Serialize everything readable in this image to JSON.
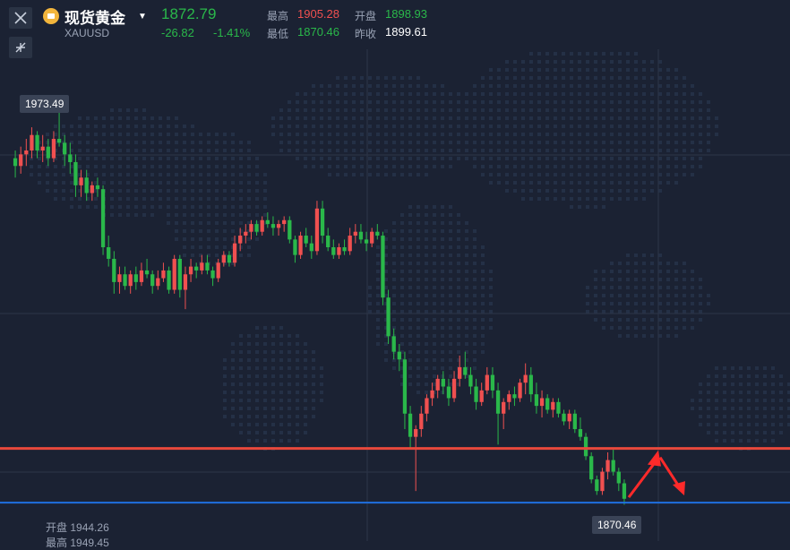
{
  "instrument": {
    "name": "现货黄金",
    "symbol": "XAUUSD",
    "dropdown_icon": "caret-down-icon",
    "coin_icon": "gold-coin-icon"
  },
  "quote": {
    "price": "1872.79",
    "change": "-26.82",
    "change_pct": "-1.41%"
  },
  "stats": {
    "high_label": "最高",
    "high": "1905.28",
    "open_label": "开盘",
    "open": "1898.93",
    "low_label": "最低",
    "low": "1870.46",
    "prev_close_label": "昨收",
    "prev_close": "1899.61"
  },
  "toolbar": {
    "close_icon": "close-icon",
    "collapse_icon": "collapse-icon"
  },
  "chart_callouts": {
    "high_marker": "1973.49",
    "low_marker": "1870.46"
  },
  "bottom_info": {
    "open_label": "开盘",
    "open_value": "1944.26",
    "high_label": "最高",
    "high_value": "1949.45"
  },
  "colors": {
    "background": "#1b2233",
    "up": "#f05050",
    "down": "#2ab84a",
    "resistance_line": "#e8483c",
    "support_line": "#1f6fe0"
  },
  "chart_data": {
    "type": "candlestick",
    "title": "",
    "xlabel": "",
    "ylabel": "",
    "ylim": [
      1862,
      1987
    ],
    "horizontal_lines": [
      {
        "name": "",
        "value": 1885,
        "color": "#e8483c"
      },
      {
        "name": "",
        "value": 1871,
        "color": "#1f6fe0"
      }
    ],
    "annotations": [
      "arrow up then down toward support"
    ],
    "candles": [
      [
        1960,
        1962,
        1955,
        1958
      ],
      [
        1958,
        1963,
        1956,
        1961
      ],
      [
        1961,
        1965,
        1958,
        1962
      ],
      [
        1962,
        1968,
        1960,
        1966
      ],
      [
        1966,
        1967,
        1960,
        1962
      ],
      [
        1962,
        1966,
        1959,
        1963
      ],
      [
        1963,
        1965,
        1958,
        1960
      ],
      [
        1960,
        1967,
        1959,
        1965
      ],
      [
        1965,
        1973,
        1963,
        1964
      ],
      [
        1964,
        1966,
        1958,
        1961
      ],
      [
        1961,
        1964,
        1956,
        1959
      ],
      [
        1959,
        1961,
        1950,
        1953
      ],
      [
        1953,
        1957,
        1950,
        1955
      ],
      [
        1955,
        1957,
        1949,
        1951
      ],
      [
        1951,
        1954,
        1949,
        1953
      ],
      [
        1953,
        1955,
        1950,
        1952
      ],
      [
        1952,
        1953,
        1935,
        1937
      ],
      [
        1937,
        1940,
        1932,
        1934
      ],
      [
        1934,
        1936,
        1925,
        1928
      ],
      [
        1928,
        1932,
        1925,
        1930
      ],
      [
        1930,
        1932,
        1926,
        1927
      ],
      [
        1927,
        1931,
        1925,
        1930
      ],
      [
        1930,
        1932,
        1926,
        1928
      ],
      [
        1928,
        1933,
        1927,
        1931
      ],
      [
        1931,
        1934,
        1929,
        1930
      ],
      [
        1930,
        1931,
        1925,
        1927
      ],
      [
        1927,
        1931,
        1926,
        1929
      ],
      [
        1929,
        1933,
        1928,
        1931
      ],
      [
        1931,
        1932,
        1925,
        1926
      ],
      [
        1926,
        1935,
        1925,
        1934
      ],
      [
        1934,
        1935,
        1924,
        1926
      ],
      [
        1926,
        1932,
        1921,
        1930
      ],
      [
        1930,
        1934,
        1928,
        1932
      ],
      [
        1932,
        1933,
        1929,
        1931
      ],
      [
        1931,
        1935,
        1930,
        1933
      ],
      [
        1933,
        1935,
        1930,
        1931
      ],
      [
        1931,
        1932,
        1927,
        1929
      ],
      [
        1929,
        1934,
        1928,
        1933
      ],
      [
        1933,
        1936,
        1932,
        1935
      ],
      [
        1935,
        1936,
        1932,
        1933
      ],
      [
        1933,
        1940,
        1932,
        1938
      ],
      [
        1938,
        1942,
        1936,
        1940
      ],
      [
        1940,
        1943,
        1938,
        1941
      ],
      [
        1941,
        1944,
        1939,
        1943
      ],
      [
        1943,
        1944,
        1940,
        1941
      ],
      [
        1941,
        1945,
        1940,
        1944
      ],
      [
        1944,
        1946,
        1942,
        1943
      ],
      [
        1943,
        1945,
        1940,
        1942
      ],
      [
        1942,
        1944,
        1940,
        1943
      ],
      [
        1943,
        1945,
        1941,
        1944
      ],
      [
        1944,
        1945,
        1938,
        1939
      ],
      [
        1939,
        1940,
        1933,
        1935
      ],
      [
        1935,
        1941,
        1934,
        1940
      ],
      [
        1940,
        1942,
        1937,
        1938
      ],
      [
        1938,
        1940,
        1934,
        1936
      ],
      [
        1936,
        1949,
        1935,
        1947
      ],
      [
        1947,
        1949,
        1938,
        1940
      ],
      [
        1940,
        1942,
        1936,
        1937
      ],
      [
        1937,
        1939,
        1934,
        1935
      ],
      [
        1935,
        1938,
        1934,
        1937
      ],
      [
        1937,
        1939,
        1935,
        1936
      ],
      [
        1936,
        1942,
        1935,
        1940
      ],
      [
        1940,
        1943,
        1938,
        1941
      ],
      [
        1941,
        1943,
        1938,
        1939
      ],
      [
        1939,
        1941,
        1936,
        1938
      ],
      [
        1938,
        1942,
        1937,
        1941
      ],
      [
        1941,
        1943,
        1939,
        1940
      ],
      [
        1940,
        1941,
        1922,
        1924
      ],
      [
        1924,
        1926,
        1912,
        1914
      ],
      [
        1914,
        1916,
        1908,
        1910
      ],
      [
        1910,
        1912,
        1905,
        1908
      ],
      [
        1908,
        1910,
        1890,
        1894
      ],
      [
        1894,
        1896,
        1885,
        1888
      ],
      [
        1888,
        1891,
        1874,
        1890
      ],
      [
        1890,
        1896,
        1888,
        1894
      ],
      [
        1894,
        1899,
        1892,
        1898
      ],
      [
        1898,
        1902,
        1896,
        1900
      ],
      [
        1900,
        1904,
        1898,
        1903
      ],
      [
        1903,
        1905,
        1899,
        1901
      ],
      [
        1901,
        1903,
        1896,
        1898
      ],
      [
        1898,
        1905,
        1897,
        1903
      ],
      [
        1903,
        1909,
        1901,
        1906
      ],
      [
        1906,
        1910,
        1903,
        1904
      ],
      [
        1904,
        1906,
        1899,
        1901
      ],
      [
        1901,
        1903,
        1895,
        1897
      ],
      [
        1897,
        1902,
        1896,
        1900
      ],
      [
        1900,
        1906,
        1899,
        1904
      ],
      [
        1904,
        1906,
        1898,
        1900
      ],
      [
        1900,
        1902,
        1886,
        1894
      ],
      [
        1894,
        1898,
        1890,
        1897
      ],
      [
        1897,
        1900,
        1895,
        1899
      ],
      [
        1899,
        1901,
        1896,
        1898
      ],
      [
        1898,
        1903,
        1897,
        1902
      ],
      [
        1902,
        1907,
        1899,
        1904
      ],
      [
        1904,
        1906,
        1897,
        1899
      ],
      [
        1899,
        1902,
        1894,
        1896
      ],
      [
        1896,
        1900,
        1893,
        1898
      ],
      [
        1898,
        1899,
        1894,
        1895
      ],
      [
        1895,
        1898,
        1893,
        1897
      ],
      [
        1897,
        1898,
        1893,
        1894
      ],
      [
        1894,
        1895,
        1891,
        1892
      ],
      [
        1892,
        1895,
        1890,
        1894
      ],
      [
        1894,
        1895,
        1889,
        1890
      ],
      [
        1890,
        1893,
        1887,
        1888
      ],
      [
        1888,
        1889,
        1882,
        1883
      ],
      [
        1883,
        1884,
        1876,
        1877
      ],
      [
        1877,
        1878,
        1873,
        1874
      ],
      [
        1874,
        1880,
        1873,
        1879
      ],
      [
        1879,
        1884,
        1877,
        1882
      ],
      [
        1882,
        1885,
        1878,
        1879
      ],
      [
        1879,
        1880,
        1874,
        1876
      ],
      [
        1876,
        1877,
        1870.46,
        1872
      ]
    ]
  }
}
